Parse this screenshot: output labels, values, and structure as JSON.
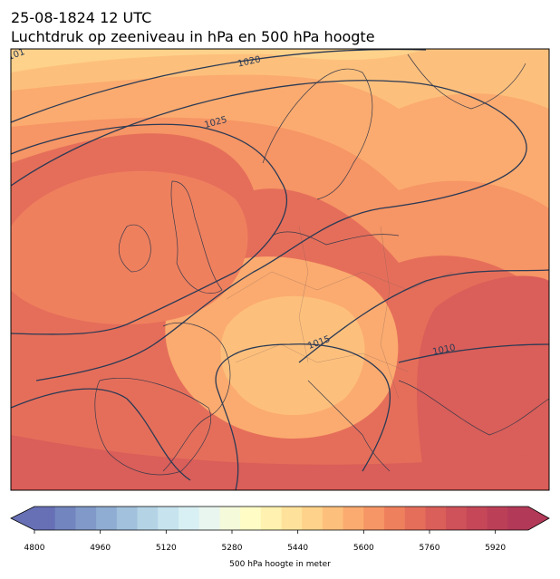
{
  "title_lines": [
    "25-08-1824 12 UTC",
    "Luchtdruk op zeeniveau in hPa en 500 hPa hoogte"
  ],
  "contour_labels": [
    "101",
    "1020",
    "1025",
    "1015",
    "1010"
  ],
  "colorbar": {
    "label": "500 hPa hoogte in meter",
    "lim": [
      4800,
      6000
    ],
    "ticks": [
      4800,
      4960,
      5120,
      5280,
      5440,
      5600,
      5760,
      5920
    ],
    "colors": [
      "#6770b5",
      "#7385bf",
      "#8199c8",
      "#8fadd2",
      "#a1c1dc",
      "#b4d4e6",
      "#c6e3ee",
      "#d8eff3",
      "#e8f6ef",
      "#f5fadb",
      "#fffcc6",
      "#fff1af",
      "#fee29b",
      "#fed28a",
      "#fdc07c",
      "#fbab6f",
      "#f69565",
      "#ef805e",
      "#e56e5a",
      "#da5e59",
      "#cf5159",
      "#c54758",
      "#bc3f58",
      "#b33958"
    ]
  }
}
